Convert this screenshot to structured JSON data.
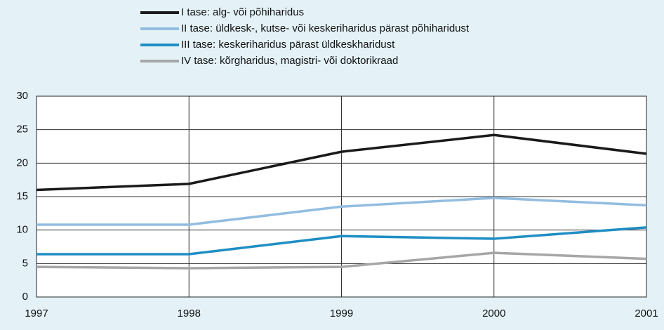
{
  "chart_data": {
    "type": "line",
    "x": [
      1997,
      1998,
      1999,
      2000,
      2001
    ],
    "xlim": [
      1997,
      2001
    ],
    "xticks": [
      1997,
      1998,
      1999,
      2000,
      2001
    ],
    "ylim": [
      0,
      30
    ],
    "yticks": [
      0,
      5,
      10,
      15,
      20,
      25,
      30
    ],
    "grid": true,
    "legend": "top",
    "series": [
      {
        "name": "I tase: alg- või põhiharidus",
        "color": "#1a1a1a",
        "values": [
          16,
          16.9,
          21.7,
          24.2,
          21.4
        ]
      },
      {
        "name": "II tase: üldkesk-, kutse- või keskeriharidus pärast põhiharidust",
        "color": "#92bde0",
        "values": [
          10.8,
          10.8,
          13.5,
          14.8,
          13.7
        ]
      },
      {
        "name": "III tase: keskeriharidus pärast üldkeskharidust",
        "color": "#1f8ec4",
        "values": [
          6.4,
          6.4,
          9.1,
          8.7,
          10.4
        ]
      },
      {
        "name": "IV tase: kõrgharidus, magistri- või doktorikraad",
        "color": "#a6a6a6",
        "values": [
          4.5,
          4.3,
          4.5,
          6.6,
          5.7
        ]
      }
    ]
  }
}
